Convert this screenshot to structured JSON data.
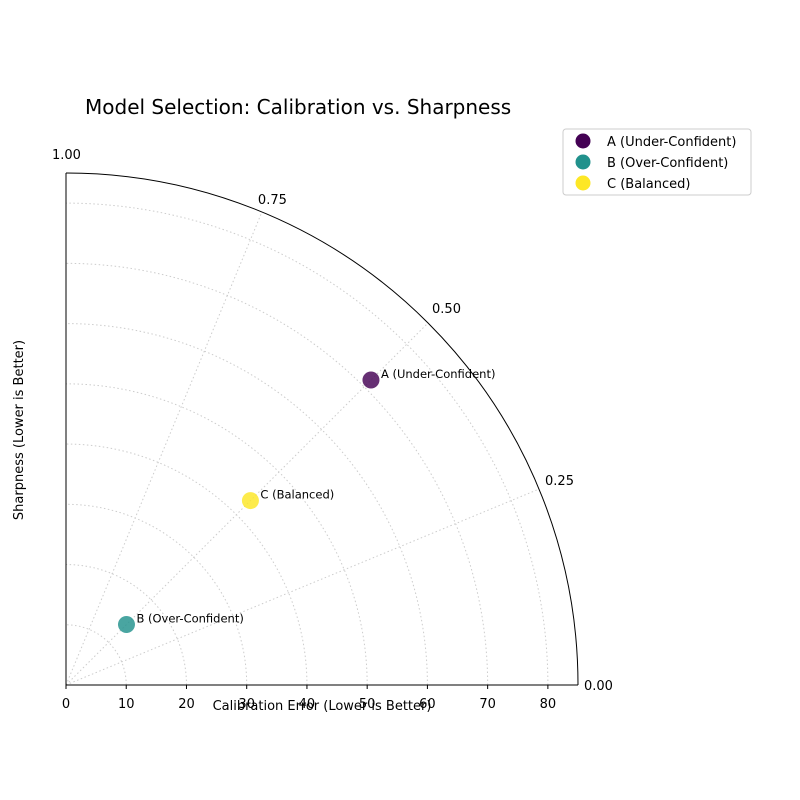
{
  "chart_data": {
    "type": "scatter",
    "projection": "polar-quarter",
    "title": "Model Selection: Calibration vs. Sharpness",
    "xlabel": "Calibration Error (Lower is Better)",
    "ylabel": "Sharpness (Lower is Better)",
    "radial_range": [
      0,
      85
    ],
    "radial_ticks": [
      "0",
      "10",
      "20",
      "30",
      "40",
      "50",
      "60",
      "70",
      "80"
    ],
    "angular_ticks": [
      "0.00",
      "0.25",
      "0.50",
      "0.75",
      "1.00"
    ],
    "grid": true,
    "legend_position": "upper-right-outside",
    "series": [
      {
        "name": "A (Under-Confident)",
        "r": 71.6,
        "angle_fraction": 0.5,
        "color": "#440154"
      },
      {
        "name": "B (Over-Confident)",
        "r": 14.2,
        "angle_fraction": 0.5,
        "color": "#21918c"
      },
      {
        "name": "C (Balanced)",
        "r": 43.3,
        "angle_fraction": 0.5,
        "color": "#fde725"
      }
    ]
  }
}
